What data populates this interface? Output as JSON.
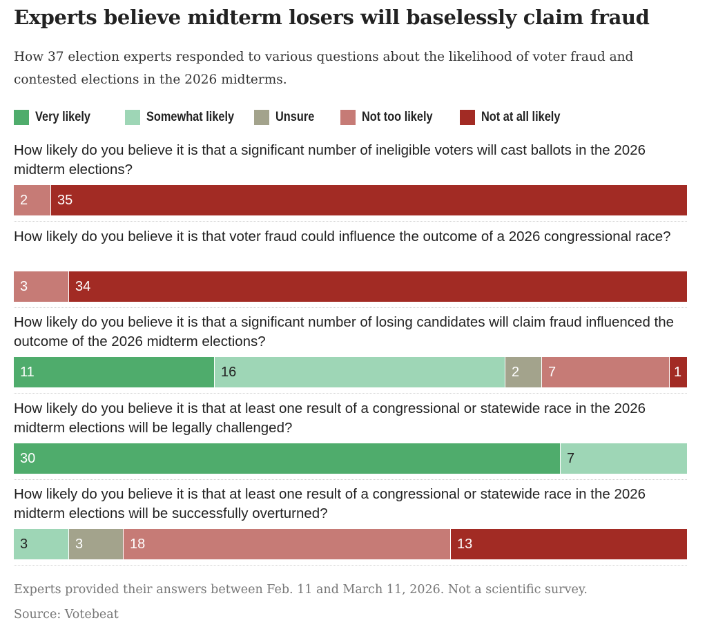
{
  "title": "Experts believe midterm losers will baselessly claim fraud",
  "subtitle": "How 37 election experts responded to various questions about the likelihood of voter fraud and contested elections in the 2026 midterms.",
  "footnote": "Experts provided their answers between Feb. 11 and March 11, 2026. Not a scientific survey.",
  "source": "Source: Votebeat",
  "colors": {
    "Very likely": "#4fac6c",
    "Somewhat likely": "#9ed6b6",
    "Unsure": "#a3a38c",
    "Not too likely": "#c67b76",
    "Not at all likely": "#a22b24"
  },
  "label_colors": {
    "Very likely": "#ffffff",
    "Somewhat likely": "#222222",
    "Unsure": "#ffffff",
    "Not too likely": "#ffffff",
    "Not at all likely": "#ffffff"
  },
  "chart_data": {
    "type": "bar",
    "orientation": "horizontal-stacked",
    "total": 37,
    "legend": [
      "Very likely",
      "Somewhat likely",
      "Unsure",
      "Not too likely",
      "Not at all likely"
    ],
    "legend_position": "top",
    "categories": [
      "How likely do you believe it is that a significant number of ineligible voters will cast ballots in the 2026 midterm elections?",
      "How likely do you believe it is that voter fraud could influence the outcome of a 2026 congressional race?",
      "How likely do you believe it is that a significant number of losing candidates will claim fraud influenced the outcome of the 2026 midterm elections?",
      "How likely do you believe it is that at least one result of a congressional or statewide race in the 2026 midterm elections will be legally challenged?",
      "How likely do you believe it is that at least one result of a congressional or statewide race in the 2026 midterm elections will be successfully overturned?"
    ],
    "series": [
      {
        "name": "Very likely",
        "values": [
          0,
          0,
          11,
          30,
          0
        ]
      },
      {
        "name": "Somewhat likely",
        "values": [
          0,
          0,
          16,
          7,
          3
        ]
      },
      {
        "name": "Unsure",
        "values": [
          0,
          0,
          2,
          0,
          3
        ]
      },
      {
        "name": "Not too likely",
        "values": [
          2,
          3,
          7,
          0,
          18
        ]
      },
      {
        "name": "Not at all likely",
        "values": [
          35,
          34,
          1,
          0,
          13
        ]
      }
    ]
  }
}
